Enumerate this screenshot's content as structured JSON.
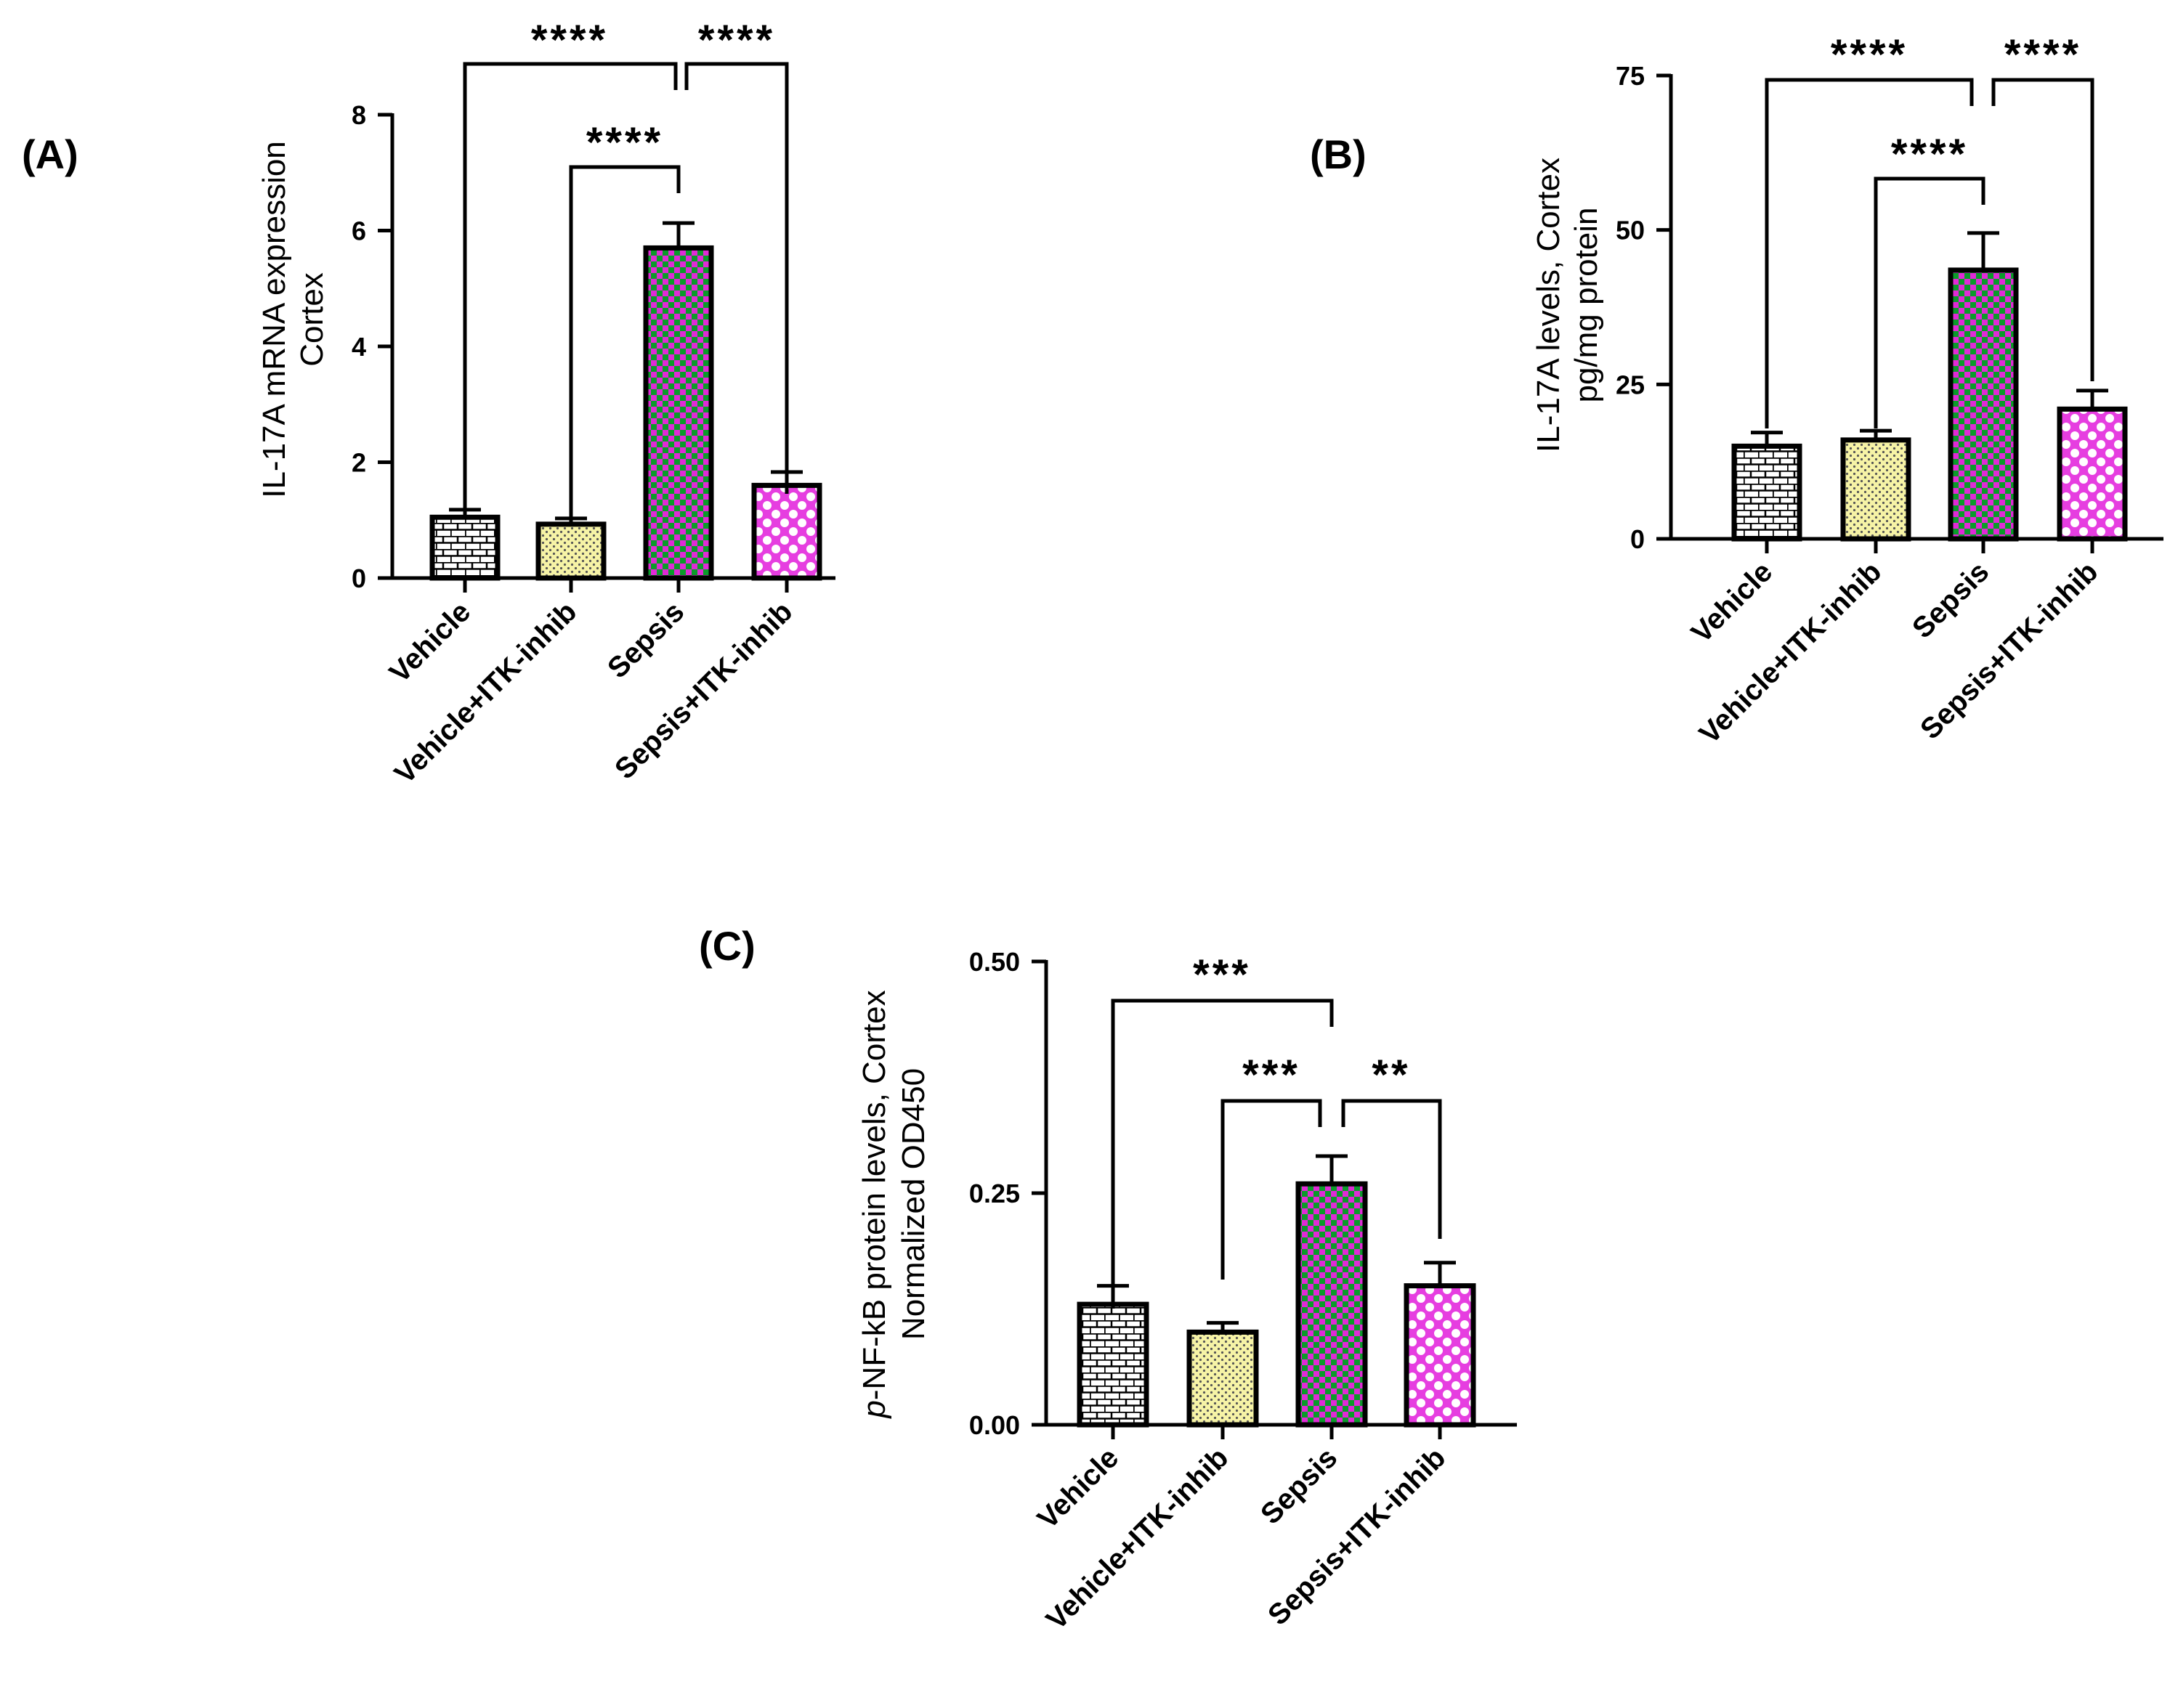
{
  "chart_data": [
    {
      "panel": "(A)",
      "type": "bar",
      "categories": [
        "Vehicle",
        "Vehicle+ITK-inhib",
        "Sepsis",
        "Sepsis+ITK-inhib"
      ],
      "values": [
        1.05,
        0.93,
        5.7,
        1.6
      ],
      "errors": [
        0.13,
        0.1,
        0.43,
        0.23
      ],
      "ylabel_line1": "IL-17A mRNA expression",
      "ylabel_line2": "Cortex",
      "ylim": [
        0,
        8
      ],
      "yticks": [
        "0",
        "2",
        "4",
        "6",
        "8"
      ],
      "significance": [
        {
          "from": 0,
          "to": 2,
          "label": "****"
        },
        {
          "from": 3,
          "to": 2,
          "label": "****"
        },
        {
          "from": 1,
          "to": 2,
          "label": "****"
        }
      ]
    },
    {
      "panel": "(B)",
      "type": "bar",
      "categories": [
        "Vehicle",
        "Vehicle+ITK-inhib",
        "Sepsis",
        "Sepsis+ITK-inhib"
      ],
      "values": [
        15,
        16,
        43.5,
        21
      ],
      "errors": [
        2.2,
        1.5,
        6,
        3
      ],
      "ylabel_line1": "IL-17A levels, Cortex",
      "ylabel_line2": "pg/mg protein",
      "ylim": [
        0,
        75
      ],
      "yticks": [
        "0",
        "25",
        "50",
        "75"
      ],
      "significance": [
        {
          "from": 0,
          "to": 2,
          "label": "****"
        },
        {
          "from": 3,
          "to": 2,
          "label": "****"
        },
        {
          "from": 1,
          "to": 2,
          "label": "****"
        }
      ]
    },
    {
      "panel": "(C)",
      "type": "bar",
      "categories": [
        "Vehicle",
        "Vehicle+ITK-inhib",
        "Sepsis",
        "Sepsis+ITK-inhib"
      ],
      "values": [
        0.13,
        0.1,
        0.26,
        0.15
      ],
      "errors": [
        0.02,
        0.01,
        0.03,
        0.025
      ],
      "ylabel_italic": "p",
      "ylabel_line1": "-NF-kB protein levels, Cortex",
      "ylabel_line2": "Normalized OD450",
      "ylim": [
        0,
        0.5
      ],
      "yticks": [
        "0.00",
        "0.25",
        "0.50"
      ],
      "significance": [
        {
          "from": 0,
          "to": 2,
          "label": "***"
        },
        {
          "from": 1,
          "to": 2,
          "label": "***"
        },
        {
          "from": 3,
          "to": 2,
          "label": "**"
        }
      ]
    }
  ],
  "colors": {
    "vehicle_fill": "#ffffff",
    "vehicle_pattern": "#000000",
    "itk_fill": "#f6f3a6",
    "itk_pattern": "#555555",
    "sepsis_fill": "#0a9b2a",
    "sepsis_pattern": "#e02ad6",
    "sepsis_itk_fill": "#e63ee0",
    "sepsis_itk_pattern": "#ffffff"
  }
}
